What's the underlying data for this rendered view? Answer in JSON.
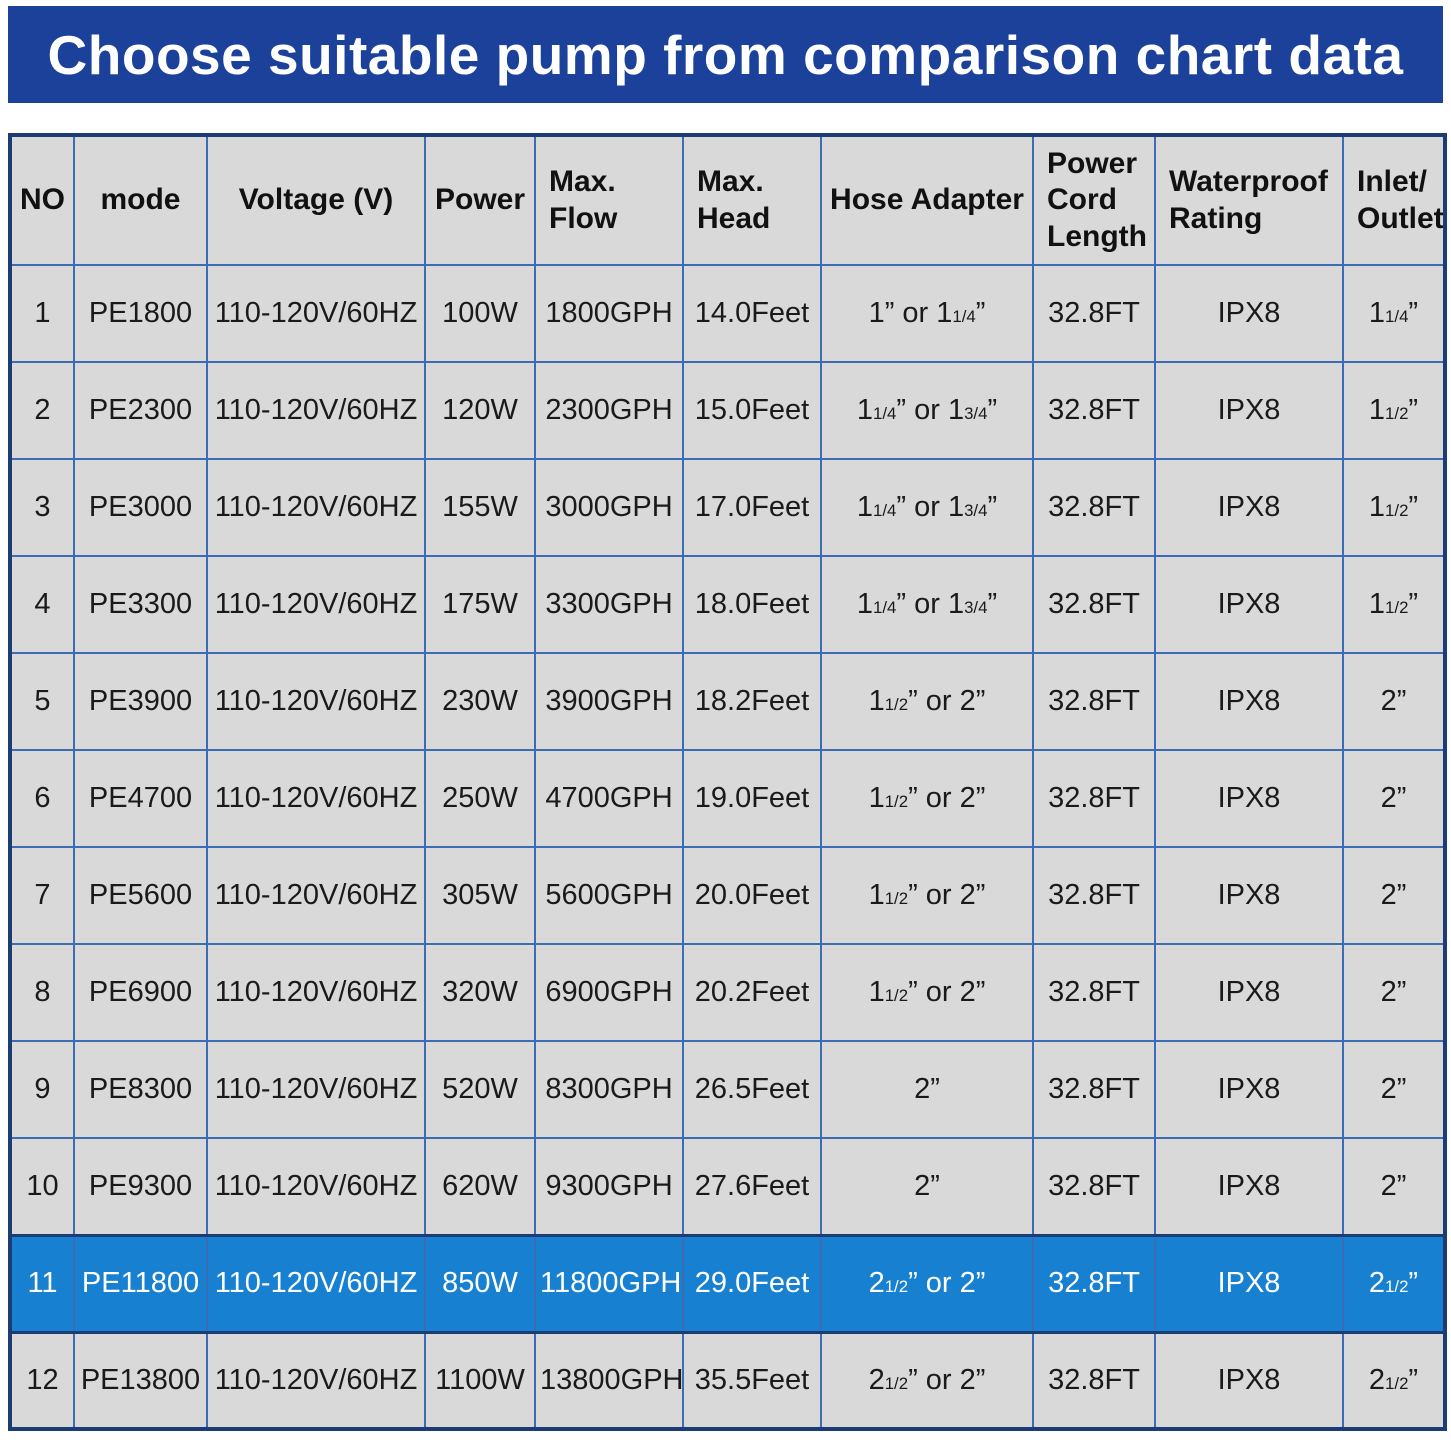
{
  "colors": {
    "banner_blue": "#1b419b",
    "highlight_row_blue": "#1780d0",
    "grid_line_blue": "#3c6cb5",
    "outer_border_navy": "#1e3c74",
    "cell_gray": "#d9d9d9",
    "banner_text": "#ffffff"
  },
  "chart_data": {
    "type": "table",
    "title": "Choose suitable pump from comparison chart data",
    "highlighted_row_no": "11",
    "columns": [
      {
        "key": "no",
        "label": "NO"
      },
      {
        "key": "mode",
        "label": "mode"
      },
      {
        "key": "voltage",
        "label": "Voltage (V)"
      },
      {
        "key": "power",
        "label": "Power"
      },
      {
        "key": "max_flow",
        "label": "Max.\nFlow"
      },
      {
        "key": "max_head",
        "label": "Max.\nHead"
      },
      {
        "key": "hose_adapter",
        "label": "Hose Adapter"
      },
      {
        "key": "cord_length",
        "label": "Power\nCord\nLength"
      },
      {
        "key": "waterproof",
        "label": "Waterproof\nRating"
      },
      {
        "key": "inlet_outlet",
        "label": "Inlet/\nOutlet"
      }
    ],
    "rows": [
      {
        "no": "1",
        "mode": "PE1800",
        "voltage": "110-120V/60HZ",
        "power": "100W",
        "max_flow": "1800GPH",
        "max_head": "14.0Feet",
        "hose_adapter": "1” or 11/4”",
        "cord_length": "32.8FT",
        "waterproof": "IPX8",
        "inlet_outlet": "11/4”",
        "highlight": false
      },
      {
        "no": "2",
        "mode": "PE2300",
        "voltage": "110-120V/60HZ",
        "power": "120W",
        "max_flow": "2300GPH",
        "max_head": "15.0Feet",
        "hose_adapter": "11/4” or 13/4”",
        "cord_length": "32.8FT",
        "waterproof": "IPX8",
        "inlet_outlet": "11/2”",
        "highlight": false
      },
      {
        "no": "3",
        "mode": "PE3000",
        "voltage": "110-120V/60HZ",
        "power": "155W",
        "max_flow": "3000GPH",
        "max_head": "17.0Feet",
        "hose_adapter": "11/4” or 13/4”",
        "cord_length": "32.8FT",
        "waterproof": "IPX8",
        "inlet_outlet": "11/2”",
        "highlight": false
      },
      {
        "no": "4",
        "mode": "PE3300",
        "voltage": "110-120V/60HZ",
        "power": "175W",
        "max_flow": "3300GPH",
        "max_head": "18.0Feet",
        "hose_adapter": "11/4” or 13/4”",
        "cord_length": "32.8FT",
        "waterproof": "IPX8",
        "inlet_outlet": "11/2”",
        "highlight": false
      },
      {
        "no": "5",
        "mode": "PE3900",
        "voltage": "110-120V/60HZ",
        "power": "230W",
        "max_flow": "3900GPH",
        "max_head": "18.2Feet",
        "hose_adapter": "11/2” or 2”",
        "cord_length": "32.8FT",
        "waterproof": "IPX8",
        "inlet_outlet": "2”",
        "highlight": false
      },
      {
        "no": "6",
        "mode": "PE4700",
        "voltage": "110-120V/60HZ",
        "power": "250W",
        "max_flow": "4700GPH",
        "max_head": "19.0Feet",
        "hose_adapter": "11/2” or 2”",
        "cord_length": "32.8FT",
        "waterproof": "IPX8",
        "inlet_outlet": "2”",
        "highlight": false
      },
      {
        "no": "7",
        "mode": "PE5600",
        "voltage": "110-120V/60HZ",
        "power": "305W",
        "max_flow": "5600GPH",
        "max_head": "20.0Feet",
        "hose_adapter": "11/2” or 2”",
        "cord_length": "32.8FT",
        "waterproof": "IPX8",
        "inlet_outlet": "2”",
        "highlight": false
      },
      {
        "no": "8",
        "mode": "PE6900",
        "voltage": "110-120V/60HZ",
        "power": "320W",
        "max_flow": "6900GPH",
        "max_head": "20.2Feet",
        "hose_adapter": "11/2” or 2”",
        "cord_length": "32.8FT",
        "waterproof": "IPX8",
        "inlet_outlet": "2”",
        "highlight": false
      },
      {
        "no": "9",
        "mode": "PE8300",
        "voltage": "110-120V/60HZ",
        "power": "520W",
        "max_flow": "8300GPH",
        "max_head": "26.5Feet",
        "hose_adapter": "2”",
        "cord_length": "32.8FT",
        "waterproof": "IPX8",
        "inlet_outlet": "2”",
        "highlight": false
      },
      {
        "no": "10",
        "mode": "PE9300",
        "voltage": "110-120V/60HZ",
        "power": "620W",
        "max_flow": "9300GPH",
        "max_head": "27.6Feet",
        "hose_adapter": "2”",
        "cord_length": "32.8FT",
        "waterproof": "IPX8",
        "inlet_outlet": "2”",
        "highlight": false
      },
      {
        "no": "11",
        "mode": "PE11800",
        "voltage": "110-120V/60HZ",
        "power": "850W",
        "max_flow": "11800GPH",
        "max_head": "29.0Feet",
        "hose_adapter": "21/2” or 2”",
        "cord_length": "32.8FT",
        "waterproof": "IPX8",
        "inlet_outlet": "21/2”",
        "highlight": true
      },
      {
        "no": "12",
        "mode": "PE13800",
        "voltage": "110-120V/60HZ",
        "power": "1100W",
        "max_flow": "13800GPH",
        "max_head": "35.5Feet",
        "hose_adapter": "21/2” or 2”",
        "cord_length": "32.8FT",
        "waterproof": "IPX8",
        "inlet_outlet": "21/2”",
        "highlight": false
      }
    ]
  }
}
